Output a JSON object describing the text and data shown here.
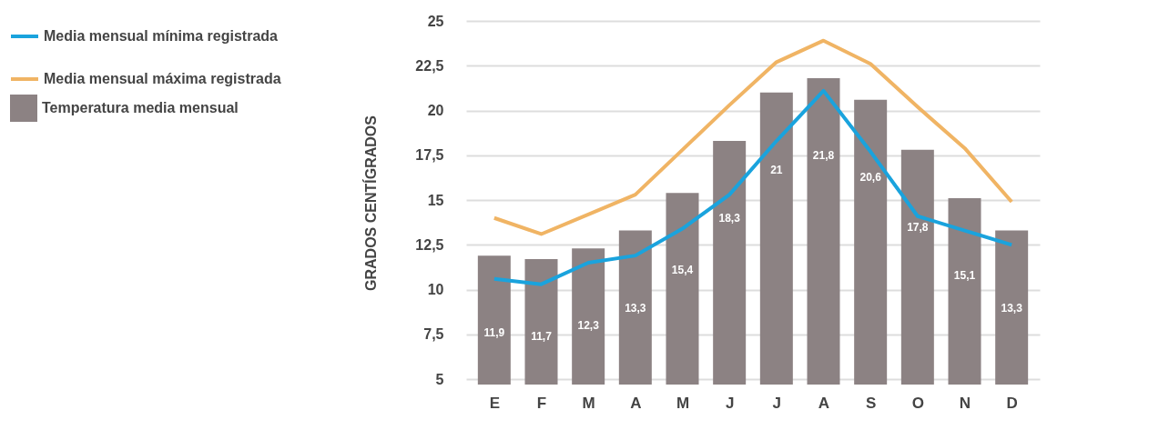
{
  "chart_data": {
    "type": "bar",
    "ylabel": "GRADOS CENTÍGRADOS",
    "categories": [
      "E",
      "F",
      "M",
      "A",
      "M",
      "J",
      "J",
      "A",
      "S",
      "O",
      "N",
      "D"
    ],
    "series": [
      {
        "name": "Temperatura media mensual",
        "color": "#8c8283",
        "values": [
          11.9,
          11.7,
          12.3,
          13.3,
          15.4,
          18.3,
          21,
          21.8,
          20.6,
          17.8,
          15.1,
          13.3
        ],
        "value_labels": [
          "11,9",
          "11,7",
          "12,3",
          "13,3",
          "15,4",
          "18,3",
          "21",
          "21,8",
          "20,6",
          "17,8",
          "15,1",
          "13,3"
        ]
      },
      {
        "name": "Media mensual mínima registrada",
        "type": "line",
        "color": "#1aa3dd",
        "values": [
          10.6,
          10.3,
          11.5,
          11.9,
          13.4,
          15.3,
          18.3,
          21.1,
          17.7,
          14.1,
          13.3,
          12.5
        ]
      },
      {
        "name": "Media mensual máxima registrada",
        "type": "line",
        "color": "#f0b464",
        "values": [
          14.0,
          13.1,
          14.2,
          15.3,
          17.8,
          20.3,
          22.7,
          23.9,
          22.6,
          20.2,
          17.9,
          14.9
        ]
      }
    ],
    "ylim": [
      4.7,
      25
    ],
    "yticks": [
      {
        "value": 5,
        "label": "5"
      },
      {
        "value": 7.5,
        "label": "7,5"
      },
      {
        "value": 10,
        "label": "10"
      },
      {
        "value": 12.5,
        "label": "12,5"
      },
      {
        "value": 15,
        "label": "15"
      },
      {
        "value": 17.5,
        "label": "17,5"
      },
      {
        "value": 20,
        "label": "20"
      },
      {
        "value": 22.5,
        "label": "22,5"
      },
      {
        "value": 25,
        "label": "25"
      }
    ],
    "grid": "y",
    "legend": "left"
  }
}
